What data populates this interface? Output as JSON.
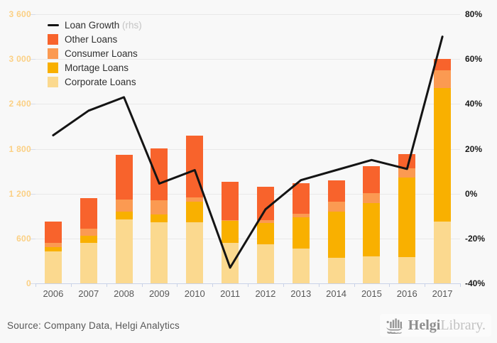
{
  "chart_data": {
    "type": "bar",
    "stacked": true,
    "title": "",
    "categories": [
      "2006",
      "2007",
      "2008",
      "2009",
      "2010",
      "2011",
      "2012",
      "2013",
      "2014",
      "2015",
      "2016",
      "2017"
    ],
    "series": [
      {
        "name": "Corporate Loans",
        "color": "#fbd98f",
        "values": [
          425,
          545,
          855,
          815,
          815,
          540,
          525,
          465,
          345,
          365,
          355,
          825
        ]
      },
      {
        "name": "Mortage Loans",
        "color": "#f9b000",
        "values": [
          55,
          90,
          100,
          105,
          280,
          295,
          285,
          420,
          615,
          710,
          1060,
          1785
        ]
      },
      {
        "name": "Consumer Loans",
        "color": "#fb9a52",
        "values": [
          60,
          95,
          170,
          190,
          55,
          15,
          40,
          50,
          135,
          130,
          125,
          240
        ]
      },
      {
        "name": "Other Loans",
        "color": "#f8632c",
        "values": [
          290,
          410,
          595,
          695,
          825,
          510,
          440,
          405,
          280,
          360,
          190,
          150
        ]
      }
    ],
    "bar_totals": [
      830,
      1140,
      1720,
      1805,
      1975,
      1360,
      1290,
      1340,
      1375,
      1565,
      1730,
      3000
    ],
    "line_series": {
      "name": "Loan Growth",
      "suffix": "(rhs)",
      "axis": "right",
      "color": "#141414",
      "values": [
        26,
        37,
        43,
        4.5,
        10.5,
        -33,
        -7,
        6,
        10.5,
        15,
        11,
        70
      ]
    },
    "left_axis": {
      "min": 0,
      "max": 3600,
      "tick_labels": [
        "3 600",
        "3 000",
        "2 400",
        "1 800",
        "1 200",
        "600",
        "0"
      ]
    },
    "right_axis": {
      "min": -40,
      "max": 80,
      "tick_labels": [
        "80%",
        "60%",
        "40%",
        "20%",
        "0%",
        "-20%",
        "-40%"
      ]
    },
    "grid": true,
    "legend_position": "top-left",
    "legend": [
      {
        "label": "Loan Growth",
        "suffix": " (rhs)",
        "swatch": "line",
        "color": "#141414"
      },
      {
        "label": "Other Loans",
        "swatch": "box",
        "color": "#f8632c"
      },
      {
        "label": "Consumer Loans",
        "swatch": "box",
        "color": "#fb9a52"
      },
      {
        "label": "Mortage Loans",
        "swatch": "box",
        "color": "#f9b000"
      },
      {
        "label": "Corporate Loans",
        "swatch": "box",
        "color": "#fbd98f"
      }
    ],
    "colors": {
      "background": "#f8f8f8",
      "gridline": "#e9e9e9",
      "x_axis": "#c9d3e8",
      "left_tick_labels": "#fbd084",
      "right_tick_labels": "#1a1a1a",
      "year_labels": "#585858"
    }
  },
  "footer": {
    "source": "Source: Company Data, Helgi Analytics",
    "logo": {
      "brand_bold": "Helgi",
      "brand_light": "Library."
    }
  }
}
